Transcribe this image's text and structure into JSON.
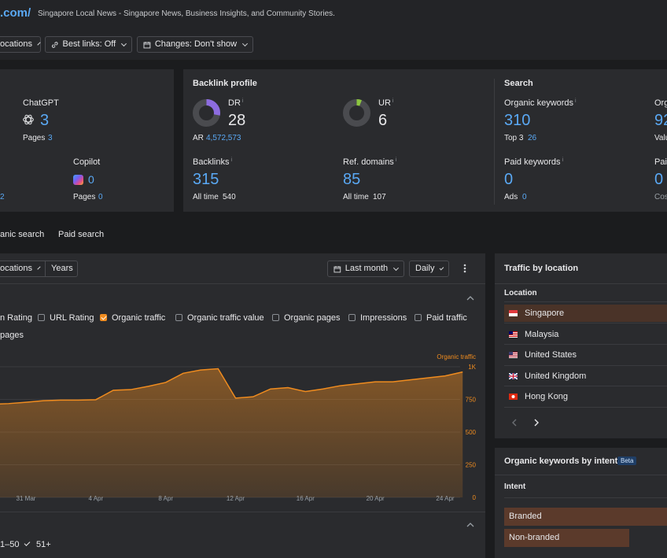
{
  "header": {
    "domain_fragment": ".com/",
    "site_title": "Singapore Local News - Singapore News, Business Insights, and Community Stories."
  },
  "toolbar": {
    "locations_label": "ocations",
    "best_links_label": "Best links: Off",
    "changes_label": "Changes: Don't show"
  },
  "ai_card": {
    "chatgpt": {
      "label": "ChatGPT",
      "value": "3",
      "pages_label": "Pages",
      "pages_value": "3"
    },
    "copilot": {
      "label": "Copilot",
      "value": "0",
      "pages_label": "Pages",
      "pages_value": "0"
    },
    "left_fragment": "2"
  },
  "backlink_card": {
    "title": "Backlink profile",
    "dr": {
      "label": "DR",
      "value": "28",
      "fill": 0.28
    },
    "ur": {
      "label": "UR",
      "value": "6",
      "fill": 0.06
    },
    "ar_label": "AR",
    "ar_value": "4,572,573",
    "backlinks": {
      "label": "Backlinks",
      "value": "315",
      "sub_label": "All time",
      "sub_value": "540"
    },
    "ref_domains": {
      "label": "Ref. domains",
      "value": "85",
      "sub_label": "All time",
      "sub_value": "107"
    }
  },
  "search_card": {
    "title": "Search",
    "organic_keywords": {
      "label": "Organic keywords",
      "value": "310",
      "sub_label": "Top 3",
      "sub_value": "26"
    },
    "paid_keywords": {
      "label": "Paid keywords",
      "value": "0",
      "sub_label": "Ads",
      "sub_value": "0"
    },
    "cut_label_1": "Org",
    "cut_value_1": "92",
    "cut_sub_1": "Valu",
    "cut_label_2": "Pai",
    "cut_value_2": "0",
    "cut_sub_2": "Cos"
  },
  "tabs": {
    "organic": "anic search",
    "paid": "Paid search"
  },
  "chart_controls": {
    "locations": "ocations",
    "years": "Years",
    "period": "Last month",
    "granularity": "Daily"
  },
  "metrics": [
    {
      "label": "n Rating",
      "checked": false,
      "partial": true
    },
    {
      "label": "URL Rating",
      "checked": false
    },
    {
      "label": "Organic traffic",
      "checked": true
    },
    {
      "label": "Organic traffic value",
      "checked": false
    },
    {
      "label": "Organic pages",
      "checked": false
    },
    {
      "label": "Impressions",
      "checked": false
    },
    {
      "label": "Paid traffic",
      "checked": false
    }
  ],
  "metrics_second_row": "pages",
  "chart_data": {
    "type": "area",
    "series": [
      {
        "name": "Organic traffic",
        "values": [
          {
            "x": "2025-03-27",
            "y": 700
          },
          {
            "x": "2025-03-28",
            "y": 705
          },
          {
            "x": "2025-03-29",
            "y": 712
          },
          {
            "x": "2025-03-30",
            "y": 718
          },
          {
            "x": "2025-03-31",
            "y": 728
          },
          {
            "x": "2025-04-01",
            "y": 740
          },
          {
            "x": "2025-04-02",
            "y": 745
          },
          {
            "x": "2025-04-03",
            "y": 745
          },
          {
            "x": "2025-04-04",
            "y": 748
          },
          {
            "x": "2025-04-05",
            "y": 820
          },
          {
            "x": "2025-04-06",
            "y": 825
          },
          {
            "x": "2025-04-07",
            "y": 850
          },
          {
            "x": "2025-04-08",
            "y": 880
          },
          {
            "x": "2025-04-09",
            "y": 950
          },
          {
            "x": "2025-04-10",
            "y": 975
          },
          {
            "x": "2025-04-11",
            "y": 985
          },
          {
            "x": "2025-04-12",
            "y": 760
          },
          {
            "x": "2025-04-13",
            "y": 770
          },
          {
            "x": "2025-04-14",
            "y": 830
          },
          {
            "x": "2025-04-15",
            "y": 840
          },
          {
            "x": "2025-04-16",
            "y": 810
          },
          {
            "x": "2025-04-17",
            "y": 830
          },
          {
            "x": "2025-04-18",
            "y": 855
          },
          {
            "x": "2025-04-19",
            "y": 870
          },
          {
            "x": "2025-04-20",
            "y": 885
          },
          {
            "x": "2025-04-21",
            "y": 885
          },
          {
            "x": "2025-04-22",
            "y": 900
          },
          {
            "x": "2025-04-23",
            "y": 915
          },
          {
            "x": "2025-04-24",
            "y": 930
          },
          {
            "x": "2025-04-25",
            "y": 960
          }
        ]
      }
    ],
    "x_ticks": [
      "31 Mar",
      "4 Apr",
      "8 Apr",
      "12 Apr",
      "16 Apr",
      "20 Apr",
      "24 Apr"
    ],
    "x_tick_dates": [
      "2025-03-31",
      "2025-04-04",
      "2025-04-08",
      "2025-04-12",
      "2025-04-16",
      "2025-04-20",
      "2025-04-24"
    ],
    "y_ticks": [
      "0",
      "250",
      "500",
      "750",
      "1K"
    ],
    "y_tick_values": [
      0,
      250,
      500,
      750,
      1000
    ],
    "ylim": [
      0,
      1000
    ],
    "ylabel": "Organic traffic",
    "grid": true,
    "color": "#f08c1f"
  },
  "bottom_filters": {
    "left": "1–50",
    "right": "51+"
  },
  "traffic_by_location": {
    "title": "Traffic by location",
    "column": "Location",
    "rows": [
      {
        "name": "Singapore",
        "flag": "sg",
        "share": 1.0
      },
      {
        "name": "Malaysia",
        "flag": "my",
        "share": 0.0
      },
      {
        "name": "United States",
        "flag": "us",
        "share": 0.0
      },
      {
        "name": "United Kingdom",
        "flag": "gb",
        "share": 0.0
      },
      {
        "name": "Hong Kong",
        "flag": "hk",
        "share": 0.0
      }
    ]
  },
  "intent": {
    "title": "Organic keywords by intent",
    "badge": "Beta",
    "column": "Intent",
    "rows": [
      {
        "name": "Branded",
        "share": 1.0
      },
      {
        "name": "Non-branded",
        "share": 0.77
      }
    ]
  },
  "colors": {
    "accent": "#f08c1f",
    "link": "#5aa9f5",
    "dr_ring": "#8d6ce0",
    "ur_ring": "#8cc63f",
    "panel": "#2a2b2e",
    "background": "#1b1c1e"
  }
}
